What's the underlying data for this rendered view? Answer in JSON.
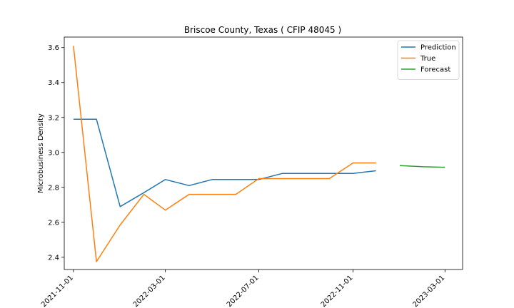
{
  "chart_data": {
    "type": "line",
    "title": "Briscoe County, Texas ( CFIP 48045 )",
    "xlabel": "",
    "ylabel": "Microbusiness Density",
    "x_ticks": [
      "2021-11-01",
      "2022-03-01",
      "2022-07-01",
      "2022-11-01",
      "2023-03-01"
    ],
    "y_ticks": [
      "2.4",
      "2.6",
      "2.8",
      "3.0",
      "3.2",
      "3.4",
      "3.6"
    ],
    "xlim": [
      "2021-10-20",
      "2023-03-24"
    ],
    "ylim": [
      2.33,
      3.66
    ],
    "legend_position": "top-right",
    "grid": false,
    "series": [
      {
        "name": "Prediction",
        "color": "#1f77b4",
        "x": [
          "2021-11-01",
          "2021-12-01",
          "2022-01-01",
          "2022-02-01",
          "2022-03-01",
          "2022-04-01",
          "2022-05-01",
          "2022-06-01",
          "2022-07-01",
          "2022-08-01",
          "2022-09-01",
          "2022-10-01",
          "2022-11-01",
          "2022-12-01"
        ],
        "values": [
          3.19,
          3.19,
          2.69,
          2.77,
          2.845,
          2.81,
          2.845,
          2.845,
          2.845,
          2.88,
          2.88,
          2.88,
          2.88,
          2.895
        ]
      },
      {
        "name": "True",
        "color": "#ff7f0e",
        "x": [
          "2021-11-01",
          "2021-12-01",
          "2022-01-01",
          "2022-02-01",
          "2022-03-01",
          "2022-04-01",
          "2022-05-01",
          "2022-06-01",
          "2022-07-01",
          "2022-08-01",
          "2022-09-01",
          "2022-10-01",
          "2022-11-01",
          "2022-12-01"
        ],
        "values": [
          3.61,
          2.375,
          2.585,
          2.76,
          2.67,
          2.76,
          2.76,
          2.76,
          2.85,
          2.85,
          2.85,
          2.85,
          2.94,
          2.94
        ]
      },
      {
        "name": "Forecast",
        "color": "#2ca02c",
        "x": [
          "2023-01-01",
          "2023-02-01",
          "2023-03-01"
        ],
        "values": [
          2.925,
          2.918,
          2.915
        ]
      }
    ]
  }
}
